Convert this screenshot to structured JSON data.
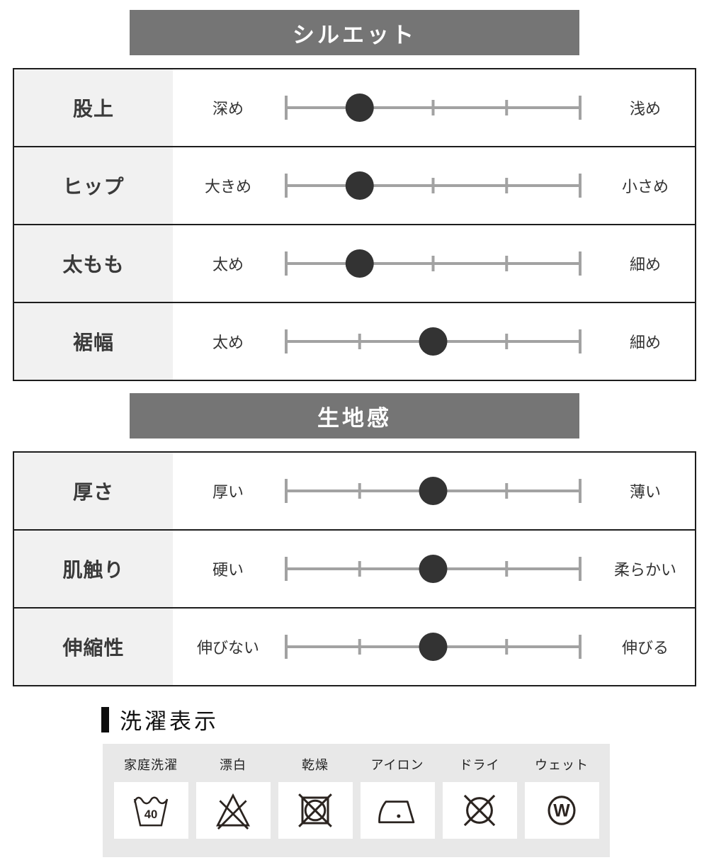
{
  "sections": [
    {
      "title": "シルエット",
      "rows": [
        {
          "label": "股上",
          "left": "深め",
          "right": "浅め",
          "value": 2,
          "max": 5
        },
        {
          "label": "ヒップ",
          "left": "大きめ",
          "right": "小さめ",
          "value": 2,
          "max": 5
        },
        {
          "label": "太もも",
          "left": "太め",
          "right": "細め",
          "value": 2,
          "max": 5
        },
        {
          "label": "裾幅",
          "left": "太め",
          "right": "細め",
          "value": 3,
          "max": 5
        }
      ]
    },
    {
      "title": "生地感",
      "rows": [
        {
          "label": "厚さ",
          "left": "厚い",
          "right": "薄い",
          "value": 3,
          "max": 5
        },
        {
          "label": "肌触り",
          "left": "硬い",
          "right": "柔らかい",
          "value": 3,
          "max": 5
        },
        {
          "label": "伸縮性",
          "left": "伸びない",
          "right": "伸びる",
          "value": 3,
          "max": 5
        }
      ]
    }
  ],
  "care": {
    "title": "洗濯表示",
    "items": [
      {
        "label": "家庭洗濯",
        "icon": "washtub-40-icon",
        "temp": "40"
      },
      {
        "label": "漂白",
        "icon": "no-bleach-icon"
      },
      {
        "label": "乾燥",
        "icon": "no-tumble-dry-icon"
      },
      {
        "label": "アイロン",
        "icon": "iron-one-dot-icon"
      },
      {
        "label": "ドライ",
        "icon": "no-dry-clean-icon"
      },
      {
        "label": "ウェット",
        "icon": "wet-clean-w-icon",
        "letter": "W"
      }
    ]
  },
  "colors": {
    "header_bar": "#757575",
    "label_cell": "#f1f1f1",
    "table_border": "#1d1d1d",
    "scale_line": "#a2a2a2",
    "scale_dot": "#333333",
    "care_panel": "#e8e8e8",
    "care_icon": "#2b2420"
  },
  "chart_data": [
    {
      "type": "rating-scale",
      "title": "シルエット",
      "scale_points": 5,
      "rows": [
        {
          "label": "股上",
          "left_anchor": "深め",
          "right_anchor": "浅め",
          "value": 2
        },
        {
          "label": "ヒップ",
          "left_anchor": "大きめ",
          "right_anchor": "小さめ",
          "value": 2
        },
        {
          "label": "太もも",
          "left_anchor": "太め",
          "right_anchor": "細め",
          "value": 2
        },
        {
          "label": "裾幅",
          "left_anchor": "太め",
          "right_anchor": "細め",
          "value": 3
        }
      ]
    },
    {
      "type": "rating-scale",
      "title": "生地感",
      "scale_points": 5,
      "rows": [
        {
          "label": "厚さ",
          "left_anchor": "厚い",
          "right_anchor": "薄い",
          "value": 3
        },
        {
          "label": "肌触り",
          "left_anchor": "硬い",
          "right_anchor": "柔らかい",
          "value": 3
        },
        {
          "label": "伸縮性",
          "left_anchor": "伸びない",
          "right_anchor": "伸びる",
          "value": 3
        }
      ]
    }
  ]
}
